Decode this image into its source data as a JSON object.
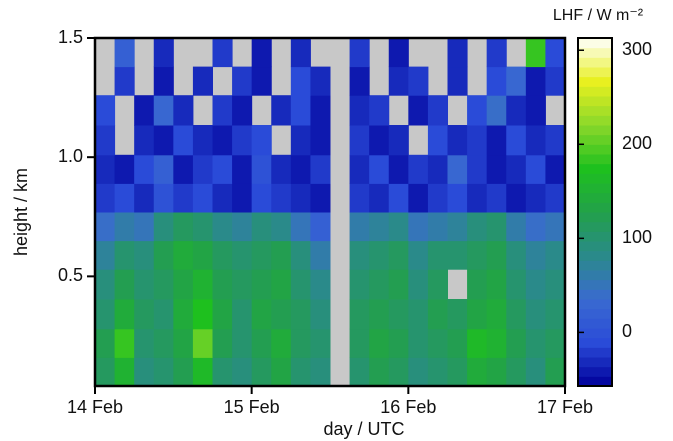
{
  "chart_data": {
    "type": "heatmap",
    "xlabel": "day / UTC",
    "ylabel": "height / km",
    "colorbar_label": "LHF / W m⁻²",
    "xlim": [
      0,
      3
    ],
    "xticks": [
      {
        "value": 0,
        "label": "14 Feb"
      },
      {
        "value": 1,
        "label": "15 Feb"
      },
      {
        "value": 2,
        "label": "16 Feb"
      },
      {
        "value": 3,
        "label": "17 Feb"
      }
    ],
    "ylim": [
      0.04,
      1.5
    ],
    "yticks": [
      0.5,
      {
        "value": 1,
        "label": "1.0"
      },
      1.5
    ],
    "clim": [
      -57,
      313
    ],
    "cticks": [
      0,
      100,
      200,
      300
    ],
    "colors": [
      "#00009a",
      "#2a4bd8",
      "#3a6ad0",
      "#2a8a8a",
      "#22a04a",
      "#1ec01e",
      "#8ad82a",
      "#e8f020",
      "#ffffff"
    ],
    "missing_color": "#c8c8c8",
    "x": [
      0.0625,
      0.1875,
      0.3125,
      0.4375,
      0.5625,
      0.6875,
      0.8125,
      0.9375,
      1.0625,
      1.1875,
      1.3125,
      1.4375,
      1.5625,
      1.6875,
      1.8125,
      1.9375,
      2.0625,
      2.1875,
      2.3125,
      2.4375,
      2.5625,
      2.6875,
      2.8125,
      2.9375
    ],
    "y": [
      0.1,
      0.22,
      0.34,
      0.47,
      0.59,
      0.71,
      0.83,
      0.95,
      1.07,
      1.2,
      1.32,
      1.44
    ],
    "z": [
      [
        110,
        150,
        90,
        100,
        120,
        160,
        100,
        90,
        110,
        130,
        100,
        90,
        null,
        100,
        120,
        110,
        90,
        100,
        110,
        140,
        130,
        110,
        90,
        120
      ],
      [
        120,
        180,
        100,
        110,
        130,
        200,
        120,
        100,
        120,
        140,
        110,
        100,
        null,
        110,
        130,
        120,
        100,
        110,
        120,
        160,
        150,
        120,
        100,
        110
      ],
      [
        100,
        140,
        110,
        100,
        140,
        170,
        130,
        100,
        130,
        120,
        110,
        90,
        null,
        110,
        120,
        110,
        100,
        120,
        110,
        130,
        140,
        110,
        90,
        100
      ],
      [
        90,
        120,
        100,
        110,
        130,
        150,
        120,
        110,
        120,
        130,
        100,
        80,
        null,
        100,
        110,
        120,
        90,
        110,
        null,
        120,
        130,
        100,
        80,
        90
      ],
      [
        70,
        100,
        90,
        120,
        140,
        130,
        110,
        100,
        110,
        120,
        90,
        60,
        null,
        90,
        100,
        110,
        80,
        100,
        100,
        110,
        120,
        90,
        70,
        80
      ],
      [
        40,
        60,
        50,
        90,
        110,
        100,
        80,
        70,
        90,
        80,
        50,
        20,
        null,
        60,
        70,
        80,
        50,
        60,
        70,
        90,
        100,
        60,
        40,
        50
      ],
      [
        -20,
        -10,
        -30,
        0,
        -20,
        -10,
        -30,
        -40,
        -10,
        -20,
        -30,
        -40,
        null,
        -20,
        -30,
        -10,
        -40,
        -20,
        -10,
        -30,
        -20,
        -40,
        -30,
        -20
      ],
      [
        -30,
        -40,
        -10,
        20,
        -40,
        -20,
        -10,
        -45,
        0,
        -30,
        -40,
        -20,
        null,
        -30,
        -10,
        -40,
        -20,
        -30,
        30,
        -20,
        -40,
        -30,
        -10,
        -40
      ],
      [
        -20,
        null,
        -30,
        -40,
        -10,
        -30,
        -40,
        -20,
        -10,
        null,
        -30,
        -45,
        null,
        -20,
        -40,
        -30,
        null,
        -10,
        -30,
        -20,
        -40,
        -10,
        -30,
        -20
      ],
      [
        -10,
        null,
        -40,
        30,
        -30,
        null,
        -20,
        -45,
        null,
        -30,
        -10,
        -40,
        null,
        -30,
        -20,
        null,
        -40,
        -20,
        null,
        -10,
        40,
        -30,
        -40,
        null
      ],
      [
        null,
        -20,
        null,
        -40,
        null,
        -30,
        null,
        -20,
        -40,
        null,
        -10,
        -30,
        null,
        -40,
        null,
        -30,
        -20,
        null,
        -30,
        null,
        -10,
        30,
        -40,
        -20
      ],
      [
        null,
        20,
        null,
        -30,
        null,
        null,
        -20,
        null,
        -40,
        null,
        -30,
        null,
        null,
        -20,
        null,
        -40,
        null,
        null,
        -30,
        null,
        -20,
        null,
        180,
        -10
      ]
    ]
  }
}
